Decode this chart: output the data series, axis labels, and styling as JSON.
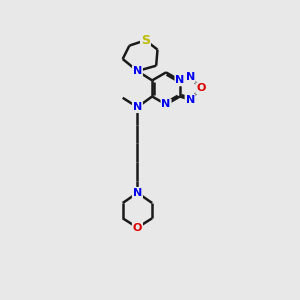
{
  "background_color": "#e8e8e8",
  "bond_color": "#1a1a1a",
  "N_color": "#0000ee",
  "O_color": "#dd0000",
  "S_color": "#bbbb00",
  "line_width": 1.8,
  "figsize": [
    3.0,
    3.0
  ],
  "dpi": 100,
  "xlim": [
    0,
    10
  ],
  "ylim": [
    0,
    11
  ]
}
